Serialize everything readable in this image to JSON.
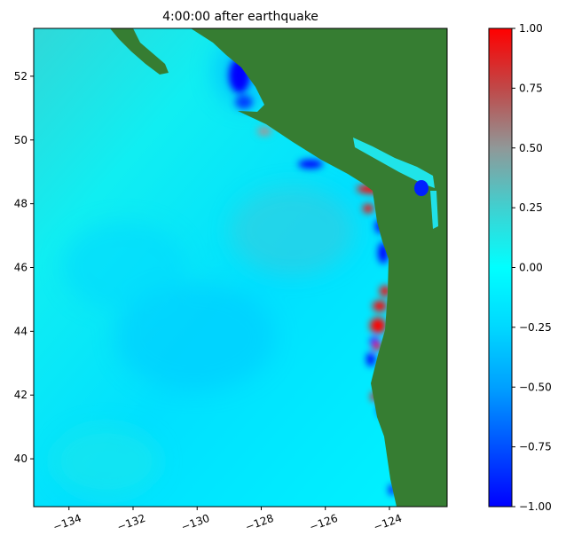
{
  "chart_data": {
    "type": "heatmap",
    "title": "4:00:00 after earthquake",
    "xlabel": "",
    "ylabel": "",
    "xlim": [
      -135.1,
      -122.2
    ],
    "ylim": [
      38.5,
      53.5
    ],
    "x_ticks": [
      -134,
      -132,
      -130,
      -128,
      -126,
      -124
    ],
    "x_tick_labels": [
      "−134",
      "−132",
      "−130",
      "−128",
      "−126",
      "−124"
    ],
    "y_ticks": [
      40,
      42,
      44,
      46,
      48,
      50,
      52
    ],
    "y_tick_labels": [
      "40",
      "42",
      "44",
      "46",
      "48",
      "50",
      "52"
    ],
    "colorbar": {
      "range": [
        -1.0,
        1.0
      ],
      "ticks": [
        -1.0,
        -0.75,
        -0.5,
        -0.25,
        0.0,
        0.25,
        0.5,
        0.75,
        1.0
      ],
      "tick_labels": [
        "−1.00",
        "−0.75",
        "−0.50",
        "−0.25",
        "0.00",
        "0.25",
        "0.50",
        "0.75",
        "1.00"
      ],
      "colors": [
        "#0000ff",
        "#0050ff",
        "#00a0ff",
        "#00d8ff",
        "#00ffff",
        "#40d0d0",
        "#909898",
        "#c04848",
        "#ff0000"
      ]
    },
    "land_color": "#367d32",
    "ocean_color": "#00ffff"
  }
}
